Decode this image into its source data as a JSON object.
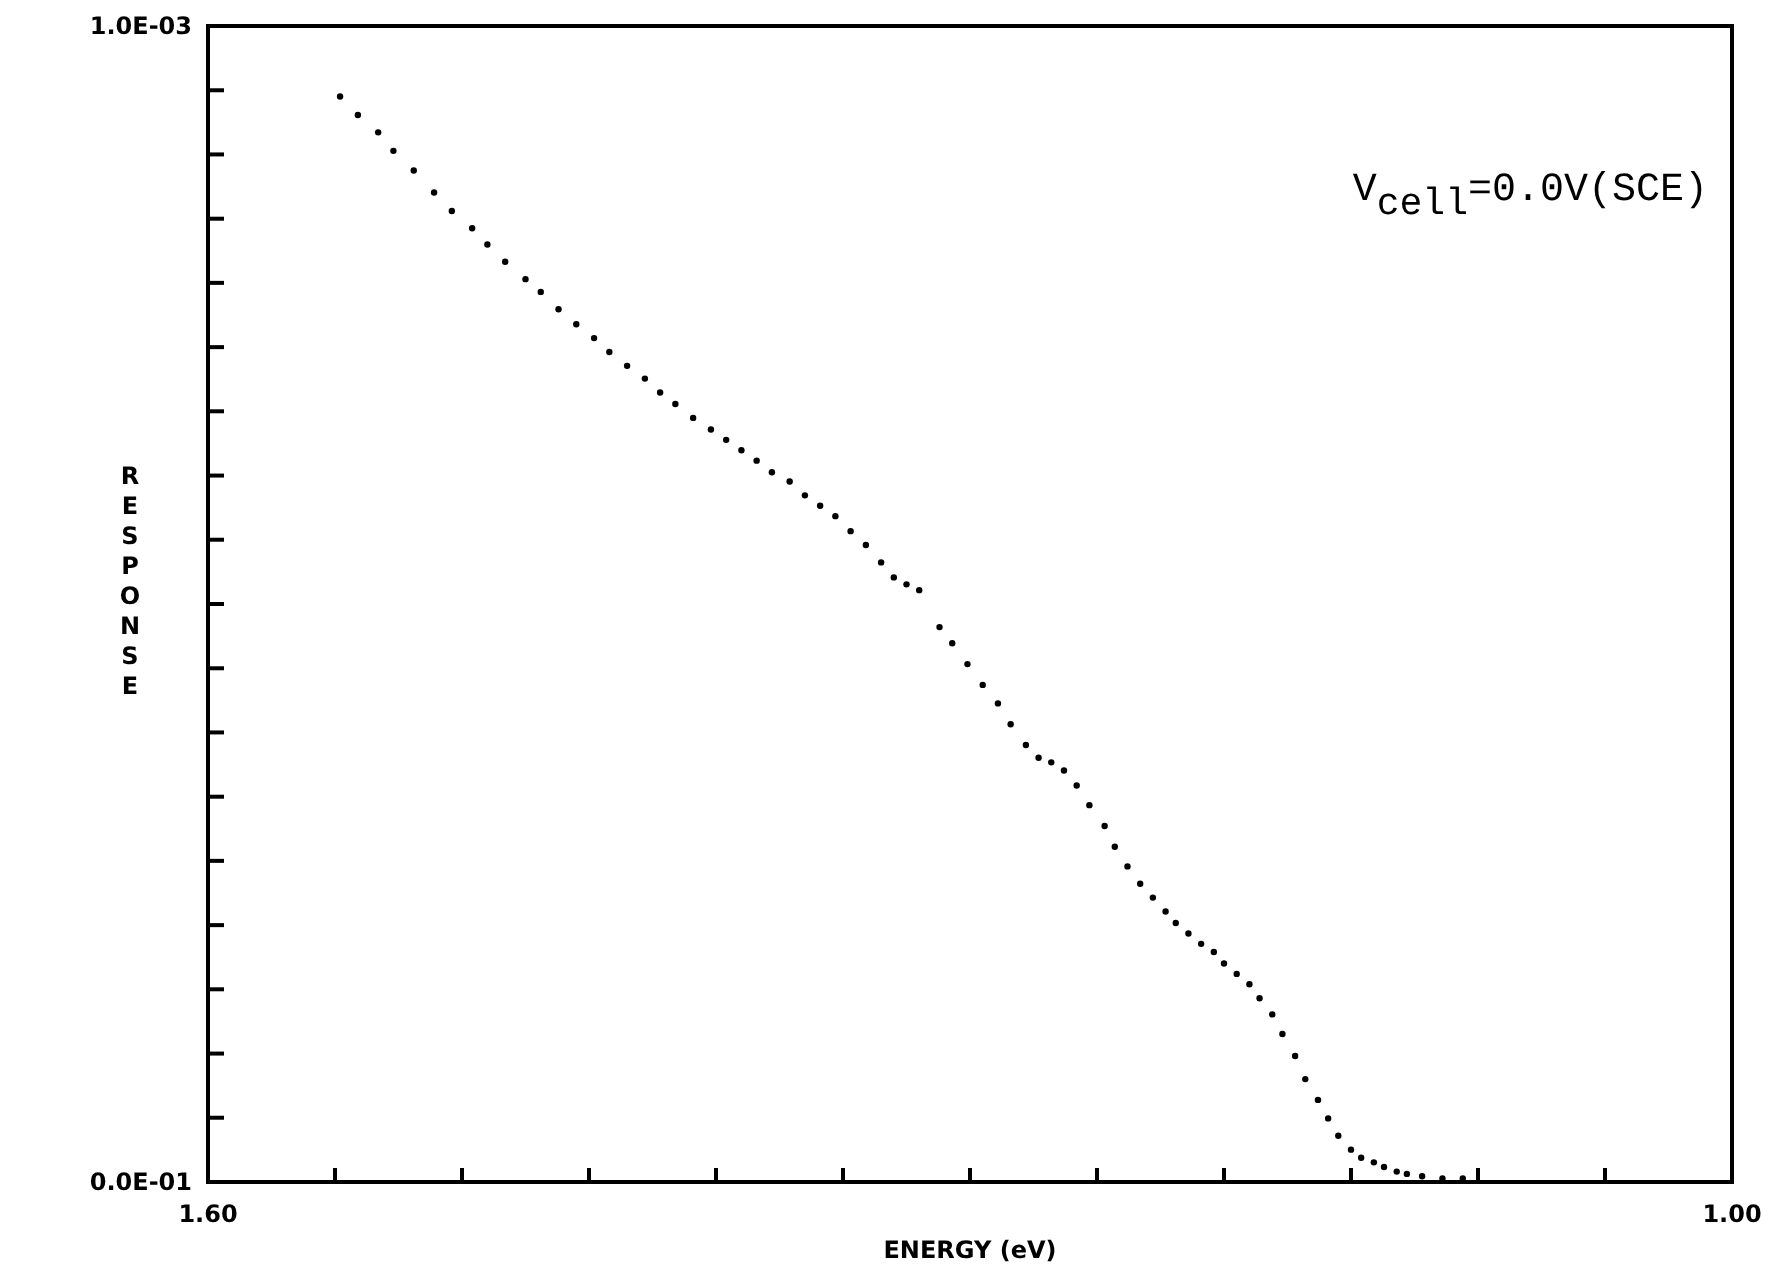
{
  "chart_data": {
    "type": "scatter",
    "xlabel": "ENERGY (eV)",
    "ylabel": "RESPONSE",
    "annotations": [
      "V$_{cell}$=0.0V(SCE)"
    ],
    "marker": "circle",
    "grid": false,
    "xlim": [
      1.6,
      1.0
    ],
    "ylim": [
      0,
      0.001
    ],
    "xticks": [
      {
        "value": 1.6,
        "label": "1.60"
      },
      {
        "value": 1.55,
        "label": null
      },
      {
        "value": 1.5,
        "label": null
      },
      {
        "value": 1.45,
        "label": null
      },
      {
        "value": 1.4,
        "label": null
      },
      {
        "value": 1.35,
        "label": null
      },
      {
        "value": 1.3,
        "label": null
      },
      {
        "value": 1.25,
        "label": null
      },
      {
        "value": 1.2,
        "label": null
      },
      {
        "value": 1.15,
        "label": null
      },
      {
        "value": 1.1,
        "label": null
      },
      {
        "value": 1.05,
        "label": null
      },
      {
        "value": 1.0,
        "label": "1.00"
      }
    ],
    "yticks": [
      {
        "value": 0,
        "label": "0.0E-01"
      },
      {
        "value": 5.56e-05,
        "label": null
      },
      {
        "value": 0.0001111,
        "label": null
      },
      {
        "value": 0.0001667,
        "label": null
      },
      {
        "value": 0.0002222,
        "label": null
      },
      {
        "value": 0.0002778,
        "label": null
      },
      {
        "value": 0.0003333,
        "label": null
      },
      {
        "value": 0.0003889,
        "label": null
      },
      {
        "value": 0.0004444,
        "label": null
      },
      {
        "value": 0.0005,
        "label": null
      },
      {
        "value": 0.0005556,
        "label": null
      },
      {
        "value": 0.0006111,
        "label": null
      },
      {
        "value": 0.0006667,
        "label": null
      },
      {
        "value": 0.0007222,
        "label": null
      },
      {
        "value": 0.0007778,
        "label": null
      },
      {
        "value": 0.0008333,
        "label": null
      },
      {
        "value": 0.0008889,
        "label": null
      },
      {
        "value": 0.0009444,
        "label": null
      },
      {
        "value": 0.001,
        "label": "1.0E-03"
      }
    ],
    "series": [
      {
        "color": "#000000",
        "x": [
          1.548,
          1.541,
          1.533,
          1.527,
          1.519,
          1.511,
          1.504,
          1.496,
          1.49,
          1.483,
          1.475,
          1.469,
          1.462,
          1.455,
          1.448,
          1.442,
          1.435,
          1.428,
          1.422,
          1.416,
          1.409,
          1.402,
          1.396,
          1.39,
          1.384,
          1.378,
          1.371,
          1.365,
          1.359,
          1.353,
          1.347,
          1.341,
          1.335,
          1.33,
          1.325,
          1.32,
          1.312,
          1.307,
          1.301,
          1.295,
          1.289,
          1.284,
          1.278,
          1.273,
          1.268,
          1.263,
          1.258,
          1.253,
          1.247,
          1.243,
          1.238,
          1.233,
          1.228,
          1.223,
          1.219,
          1.214,
          1.209,
          1.204,
          1.2,
          1.195,
          1.19,
          1.186,
          1.181,
          1.177,
          1.172,
          1.168,
          1.163,
          1.159,
          1.155,
          1.15,
          1.146,
          1.141,
          1.137,
          1.132,
          1.128,
          1.122,
          1.114,
          1.106
        ],
        "values": [
          0.000939,
          0.000923,
          0.000908,
          0.000892,
          0.000875,
          0.000856,
          0.00084,
          0.000825,
          0.000811,
          0.000796,
          0.000781,
          0.00077,
          0.000755,
          0.000742,
          0.00073,
          0.000718,
          0.000706,
          0.000695,
          0.000683,
          0.000673,
          0.000661,
          0.000651,
          0.000642,
          0.000633,
          0.000624,
          0.000614,
          0.000606,
          0.000594,
          0.000585,
          0.000576,
          0.000563,
          0.000551,
          0.000536,
          0.000523,
          0.000517,
          0.000512,
          0.00048,
          0.000466,
          0.000448,
          0.00043,
          0.000414,
          0.000396,
          0.000378,
          0.000367,
          0.000363,
          0.000356,
          0.000343,
          0.000326,
          0.000308,
          0.00029,
          0.000273,
          0.000258,
          0.000246,
          0.000234,
          0.000224,
          0.000215,
          0.000206,
          0.000199,
          0.000189,
          0.00018,
          0.000171,
          0.000159,
          0.000145,
          0.000128,
          0.000109,
          8.9e-05,
          7.1e-05,
          5.5e-05,
          4e-05,
          2.8e-05,
          2.1e-05,
          1.7e-05,
          1.3e-05,
          9e-06,
          7e-06,
          5e-06,
          3e-06,
          3e-06
        ]
      }
    ]
  }
}
